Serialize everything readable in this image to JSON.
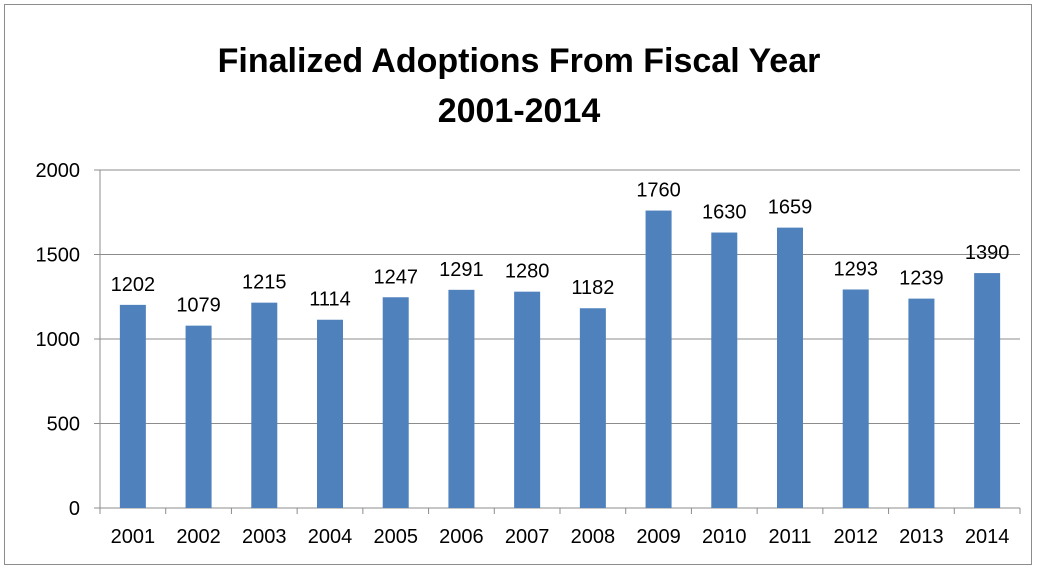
{
  "chart_data": {
    "type": "bar",
    "title_line1": "Finalized Adoptions From Fiscal Year",
    "title_line2": "2001-2014",
    "categories": [
      "2001",
      "2002",
      "2003",
      "2004",
      "2005",
      "2006",
      "2007",
      "2008",
      "2009",
      "2010",
      "2011",
      "2012",
      "2013",
      "2014"
    ],
    "series": [
      {
        "values": [
          1202,
          1079,
          1215,
          1114,
          1247,
          1291,
          1280,
          1182,
          1760,
          1630,
          1659,
          1293,
          1239,
          1390
        ],
        "color": "#4f81bd"
      }
    ],
    "ylim": [
      0,
      2000
    ],
    "yticks": [
      0,
      500,
      1000,
      1500,
      2000
    ],
    "grid": true,
    "data_labels": true,
    "legend": "none",
    "xlabel": "",
    "ylabel": ""
  }
}
